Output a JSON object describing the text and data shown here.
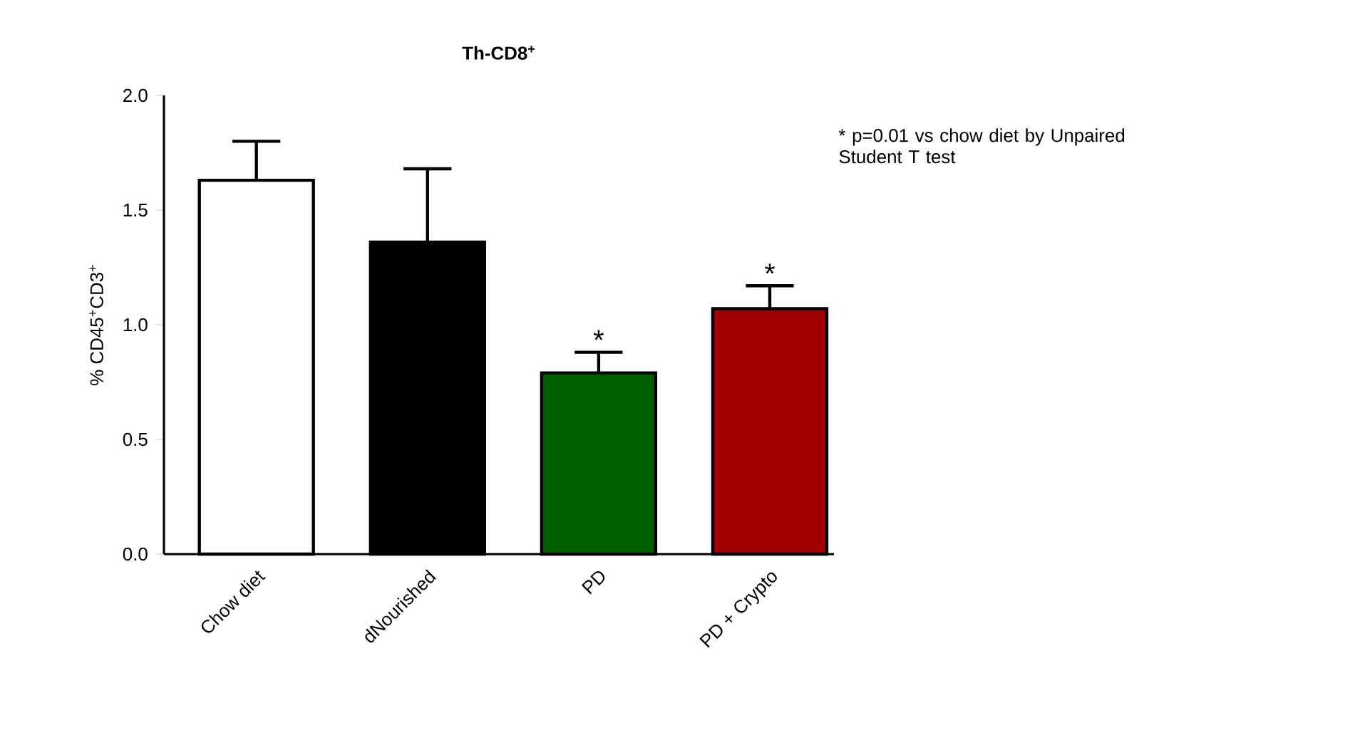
{
  "chart_data": {
    "type": "bar",
    "title": "Th-CD8$^{+}$",
    "ylabel": "% CD45$^{+}$CD3$^{+}$",
    "categories": [
      "Chow diet",
      "dNourished",
      "PD",
      "PD + Crypto"
    ],
    "values": [
      1.63,
      1.36,
      0.79,
      1.07
    ],
    "errors": [
      [
        1.63,
        1.8
      ],
      [
        1.36,
        1.68
      ],
      [
        0.79,
        0.88
      ],
      [
        1.07,
        1.17
      ]
    ],
    "colors": [
      "#ffffff",
      "#000000",
      "#006000",
      "#a00000"
    ],
    "ylim": [
      0,
      2
    ],
    "yticks": [
      {
        "value": 0,
        "label": "0.0"
      },
      {
        "value": 0.5,
        "label": "0.5"
      },
      {
        "value": 1,
        "label": "1.0"
      },
      {
        "value": 1.5,
        "label": "1.5"
      },
      {
        "value": 2,
        "label": "2.0"
      }
    ],
    "annotations": [
      {
        "text": "*",
        "x": "PD",
        "y": 0.88
      },
      {
        "text": "*",
        "x": "PD + Crypto",
        "y": 1.17
      },
      "* p=0.01 vs chow diet by Unpaired Student T test"
    ]
  }
}
